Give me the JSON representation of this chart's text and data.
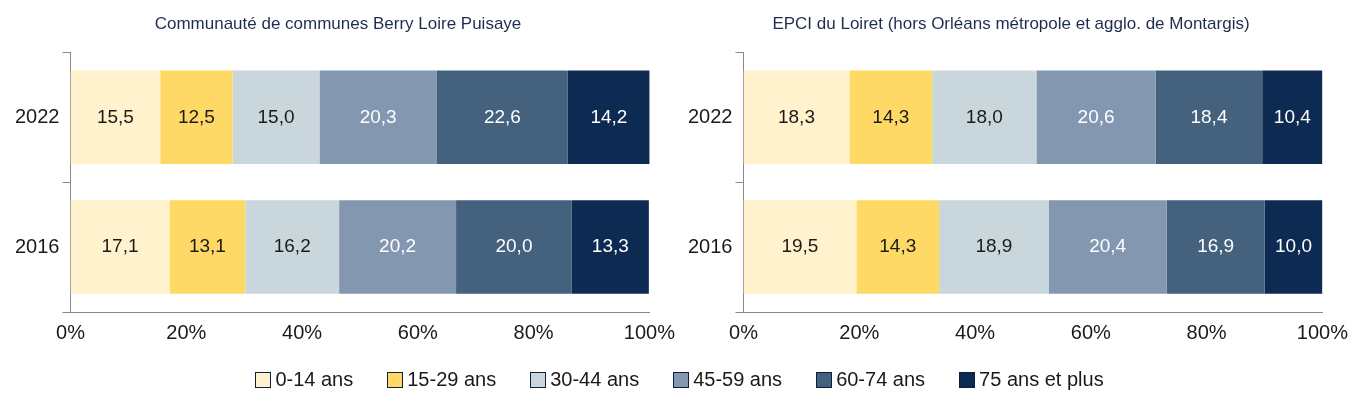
{
  "chart_data": [
    {
      "type": "bar",
      "orientation": "horizontal",
      "stacked": true,
      "title": "Communauté de communes Berry Loire Puisaye",
      "categories": [
        "2022",
        "2016"
      ],
      "xlim": [
        0,
        100
      ],
      "xticks": [
        {
          "value": 0,
          "label": "0%"
        },
        {
          "value": 20,
          "label": "20%"
        },
        {
          "value": 40,
          "label": "40%"
        },
        {
          "value": 60,
          "label": "60%"
        },
        {
          "value": 80,
          "label": "80%"
        },
        {
          "value": 100,
          "label": "100%"
        }
      ],
      "grid": false,
      "legend": "bottom",
      "series": [
        {
          "name": "0-14 ans",
          "color": "#fff2cc",
          "values": [
            15.5,
            17.1
          ],
          "value_labels": [
            "15,5",
            "17,1"
          ]
        },
        {
          "name": "15-29 ans",
          "color": "#ffd966",
          "values": [
            12.5,
            13.1
          ],
          "value_labels": [
            "12,5",
            "13,1"
          ]
        },
        {
          "name": "30-44 ans",
          "color": "#c9d6dc",
          "values": [
            15.0,
            16.2
          ],
          "value_labels": [
            "15,0",
            "16,2"
          ]
        },
        {
          "name": "45-59 ans",
          "color": "#8497b0",
          "values": [
            20.3,
            20.2
          ],
          "value_labels": [
            "20,3",
            "20,2"
          ]
        },
        {
          "name": "60-74 ans",
          "color": "#44617d",
          "values": [
            22.6,
            20.0
          ],
          "value_labels": [
            "22,6",
            "20,0"
          ]
        },
        {
          "name": "75 ans et plus",
          "color": "#0c2a52",
          "values": [
            14.2,
            13.3
          ],
          "value_labels": [
            "14,2",
            "13,3"
          ]
        }
      ]
    },
    {
      "type": "bar",
      "orientation": "horizontal",
      "stacked": true,
      "title": "EPCI du Loiret (hors Orléans métropole et agglo. de Montargis)",
      "categories": [
        "2022",
        "2016"
      ],
      "xlim": [
        0,
        100
      ],
      "xticks": [
        {
          "value": 0,
          "label": "0%"
        },
        {
          "value": 20,
          "label": "20%"
        },
        {
          "value": 40,
          "label": "40%"
        },
        {
          "value": 60,
          "label": "60%"
        },
        {
          "value": 80,
          "label": "80%"
        },
        {
          "value": 100,
          "label": "100%"
        }
      ],
      "grid": false,
      "series": [
        {
          "color": "#fff2cc",
          "values": [
            18.3,
            19.5
          ],
          "value_labels": [
            "18,3",
            "19,5"
          ]
        },
        {
          "color": "#ffd966",
          "values": [
            14.3,
            14.3
          ],
          "value_labels": [
            "14,3",
            "14,3"
          ]
        },
        {
          "color": "#c9d6dc",
          "values": [
            18.0,
            18.9
          ],
          "value_labels": [
            "18,0",
            "18,9"
          ]
        },
        {
          "color": "#8497b0",
          "values": [
            20.6,
            20.4
          ],
          "value_labels": [
            "20,6",
            "20,4"
          ]
        },
        {
          "color": "#44617d",
          "values": [
            18.4,
            16.9
          ],
          "value_labels": [
            "18,4",
            "16,9"
          ]
        },
        {
          "color": "#0c2a52",
          "values": [
            10.4,
            10.0
          ],
          "value_labels": [
            "10,4",
            "10,0"
          ]
        }
      ]
    }
  ]
}
